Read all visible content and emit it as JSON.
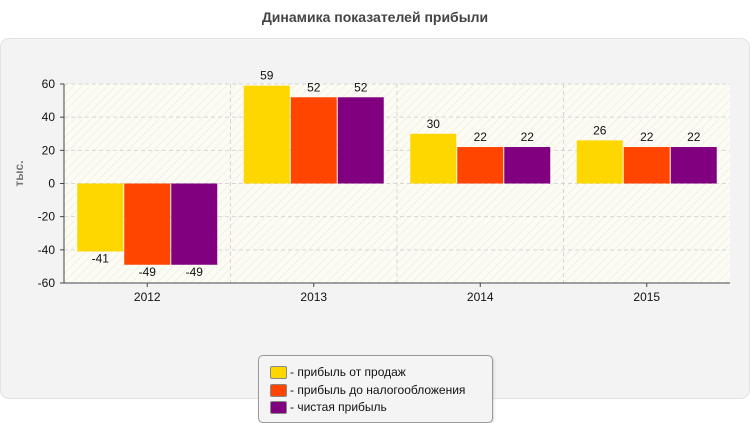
{
  "title": "Динамика показателей прибыли",
  "legend": {
    "items": [
      {
        "label": "- прибыль от продаж",
        "color": "#ffd700"
      },
      {
        "label": "- прибыль до налогообложения",
        "color": "#ff4500"
      },
      {
        "label": "- чистая прибыль",
        "color": "#800080"
      }
    ]
  },
  "chart_data": {
    "type": "bar",
    "title": "Динамика показателей прибыли",
    "xlabel": "",
    "ylabel": "тыс.",
    "categories": [
      "2012",
      "2013",
      "2014",
      "2015"
    ],
    "series": [
      {
        "name": "прибыль от продаж",
        "color": "#ffd700",
        "values": [
          -41,
          59,
          30,
          26
        ]
      },
      {
        "name": "прибыль до налогообложения",
        "color": "#ff4500",
        "values": [
          -49,
          52,
          22,
          22
        ]
      },
      {
        "name": "чистая прибыль",
        "color": "#800080",
        "values": [
          -49,
          52,
          22,
          22
        ]
      }
    ],
    "ylim": [
      -60,
      60
    ],
    "yticks": [
      "-60",
      "-40",
      "-20",
      "0",
      "20",
      "40",
      "60"
    ],
    "grid": true,
    "legend_position": "bottom-center"
  }
}
